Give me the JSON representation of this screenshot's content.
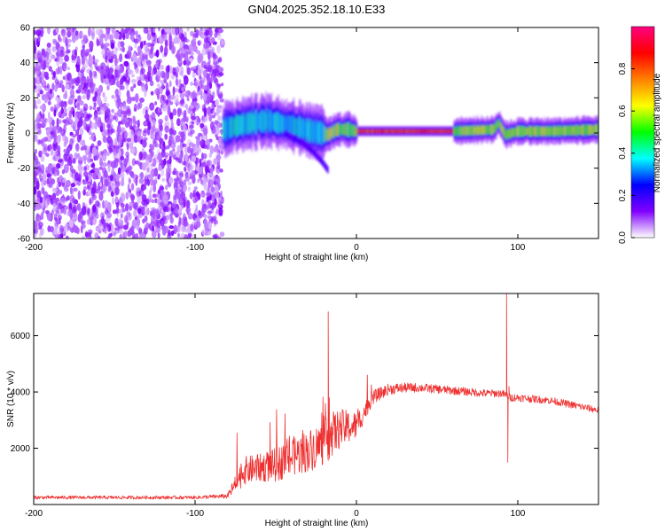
{
  "title": "GN04.2025.352.18.10.E33",
  "chart_data": [
    {
      "type": "heatmap",
      "name": "spectrogram",
      "xlabel": "Height of straight line (km)",
      "ylabel": "Frequency (Hz)",
      "xlim": [
        -200,
        150
      ],
      "ylim": [
        -60,
        60
      ],
      "xticks": [
        -200,
        -100,
        0,
        100
      ],
      "yticks": [
        -60,
        -40,
        -20,
        0,
        20,
        40,
        60
      ],
      "noise_region_x": [
        -200,
        -83
      ],
      "ridge": {
        "x": [
          -83,
          -75,
          -65,
          -55,
          -45,
          -35,
          -28,
          -22,
          -18,
          -12,
          -5,
          0,
          20,
          40,
          60,
          85,
          88,
          92,
          100,
          120,
          150
        ],
        "y": [
          2,
          4,
          6,
          7,
          5,
          3,
          1,
          0,
          -1,
          2,
          2,
          1,
          1,
          1,
          1,
          2,
          6,
          -1,
          1,
          1,
          2
        ]
      },
      "branch": {
        "x": [
          -45,
          -35,
          -28,
          -22,
          -18
        ],
        "y": [
          0,
          -5,
          -10,
          -16,
          -21
        ]
      },
      "colorbar": {
        "label": "Normalized spectral amplitude",
        "range": [
          0,
          1
        ],
        "ticks": [
          "0.0",
          "0.2",
          "0.4",
          "0.6",
          "0.8"
        ],
        "colors": [
          "#ffffff",
          "#8000ff",
          "#0000ff",
          "#00ffff",
          "#00ff00",
          "#ffff00",
          "#ff8000",
          "#ff0000",
          "#ff0080"
        ]
      }
    },
    {
      "type": "line",
      "name": "snr",
      "xlabel": "Height of straight line (km)",
      "ylabel": "SNR (10 * v/v)",
      "xlim": [
        -200,
        150
      ],
      "ylim": [
        0,
        7500
      ],
      "xticks": [
        -200,
        -100,
        0,
        100
      ],
      "yticks": [
        2000,
        4000,
        6000
      ],
      "color": "#ee3030",
      "envelope": {
        "x": [
          -200,
          -100,
          -80,
          -75,
          -70,
          -60,
          -50,
          -40,
          -30,
          -20,
          -15,
          -10,
          0,
          5,
          10,
          20,
          30,
          40,
          60,
          80,
          90,
          92,
          95,
          100,
          120,
          150
        ],
        "mean": [
          250,
          250,
          300,
          700,
          1200,
          1300,
          1400,
          1700,
          1900,
          2200,
          2500,
          2700,
          2800,
          3300,
          3800,
          4100,
          4150,
          4150,
          4050,
          3950,
          3950,
          3900,
          3800,
          3800,
          3700,
          3350
        ],
        "amp": [
          60,
          60,
          80,
          350,
          500,
          500,
          600,
          700,
          750,
          800,
          800,
          700,
          500,
          350,
          250,
          200,
          180,
          160,
          150,
          140,
          140,
          140,
          140,
          140,
          130,
          130
        ]
      },
      "spikes": [
        {
          "x": -17.5,
          "y": 6850
        },
        {
          "x": -16.8,
          "y": 3800
        },
        {
          "x": 93,
          "y": 7500
        },
        {
          "x": 93.8,
          "y": 1500
        },
        {
          "x": 94.5,
          "y": 4200
        }
      ]
    }
  ]
}
